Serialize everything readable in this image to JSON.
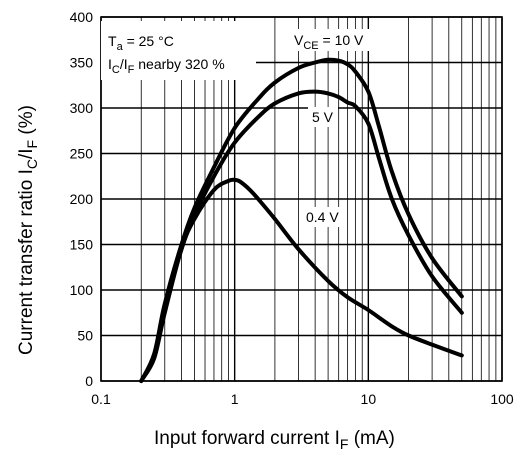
{
  "chart_data": {
    "type": "line",
    "x_scale": "log",
    "xlabel": {
      "main": "Input forward current  I",
      "sub": "F",
      "unit": "  (mA)"
    },
    "ylabel": {
      "p1": "Current transfer ratio  I",
      "s1": "C",
      "p2": "/I",
      "s2": "F",
      "p3": "  (%)"
    },
    "xlim": [
      0.1,
      100
    ],
    "ylim": [
      0,
      400
    ],
    "x_ticks": [
      {
        "value": 0.1,
        "label": "0.1"
      },
      {
        "value": 1,
        "label": "1"
      },
      {
        "value": 10,
        "label": "10"
      },
      {
        "value": 100,
        "label": "100"
      }
    ],
    "y_ticks": [
      {
        "value": 0,
        "label": "0"
      },
      {
        "value": 50,
        "label": "50"
      },
      {
        "value": 100,
        "label": "100"
      },
      {
        "value": 150,
        "label": "150"
      },
      {
        "value": 200,
        "label": "200"
      },
      {
        "value": 250,
        "label": "250"
      },
      {
        "value": 300,
        "label": "300"
      },
      {
        "value": 350,
        "label": "350"
      },
      {
        "value": 400,
        "label": "400"
      }
    ],
    "grid": true,
    "conditions": {
      "line1": {
        "p1": "T",
        "s1": "a",
        "p2": " = 25 °C"
      },
      "line2": {
        "p1": "I",
        "s1": "C",
        "p2": "/I",
        "s2": "F",
        "p3": " nearby 320 %"
      }
    },
    "series": [
      {
        "label": {
          "p1": "V",
          "s1": "CE",
          "p2": " = 10 V"
        },
        "x": [
          0.2,
          0.25,
          0.3,
          0.4,
          0.5,
          0.7,
          1,
          1.5,
          2,
          3,
          4,
          5,
          6,
          7,
          8,
          10,
          12,
          15,
          20,
          30,
          50
        ],
        "y": [
          0,
          30,
          85,
          150,
          190,
          235,
          278,
          310,
          328,
          344,
          350,
          353,
          352,
          348,
          340,
          318,
          280,
          230,
          183,
          135,
          93
        ]
      },
      {
        "label": {
          "p1": "5 V"
        },
        "x": [
          0.2,
          0.25,
          0.3,
          0.4,
          0.5,
          0.7,
          1,
          1.5,
          2,
          3,
          4,
          5,
          6,
          7,
          8,
          10,
          12,
          15,
          20,
          30,
          50
        ],
        "y": [
          0,
          28,
          80,
          145,
          182,
          225,
          262,
          290,
          305,
          316,
          318,
          316,
          312,
          306,
          302,
          283,
          245,
          200,
          160,
          115,
          75
        ]
      },
      {
        "label": {
          "p1": "0.4 V"
        },
        "x": [
          0.2,
          0.25,
          0.3,
          0.4,
          0.5,
          0.7,
          0.9,
          1,
          1.1,
          1.3,
          1.5,
          2,
          3,
          5,
          7,
          10,
          15,
          20,
          30,
          50
        ],
        "y": [
          0,
          25,
          75,
          145,
          178,
          210,
          220,
          221,
          219,
          210,
          200,
          178,
          145,
          110,
          92,
          78,
          60,
          50,
          40,
          28
        ]
      }
    ]
  }
}
